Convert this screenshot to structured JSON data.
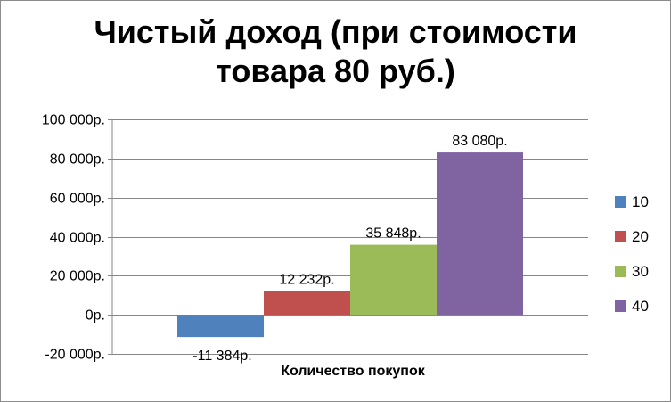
{
  "chart_data": {
    "type": "bar",
    "title_lines": [
      "Чистый доход (при стоимости",
      "товара 80 руб.)"
    ],
    "xlabel": "Количество покупок",
    "ylabel": "",
    "ylim": [
      -20000,
      100000
    ],
    "yticks": [
      {
        "value": 100000,
        "label": "100 000р."
      },
      {
        "value": 80000,
        "label": "80 000р."
      },
      {
        "value": 60000,
        "label": "60 000р."
      },
      {
        "value": 40000,
        "label": "40 000р."
      },
      {
        "value": 20000,
        "label": "20 000р."
      },
      {
        "value": 0,
        "label": "0р."
      },
      {
        "value": -20000,
        "label": "-20 000р."
      }
    ],
    "grid": true,
    "legend_position": "right",
    "series": [
      {
        "name": "10",
        "value": -11384,
        "label": "-11 384р.",
        "color": "#4f81bd"
      },
      {
        "name": "20",
        "value": 12232,
        "label": "12 232р.",
        "color": "#c0504d"
      },
      {
        "name": "30",
        "value": 35848,
        "label": "35 848р.",
        "color": "#9bbb59"
      },
      {
        "name": "40",
        "value": 83080,
        "label": "83 080р.",
        "color": "#8064a2"
      }
    ]
  }
}
